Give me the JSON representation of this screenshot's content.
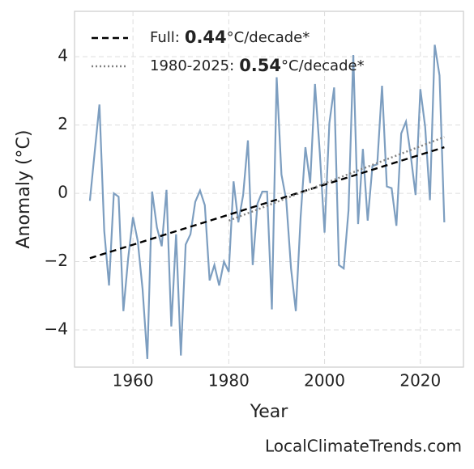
{
  "chart_data": {
    "type": "line",
    "x_label": "Year",
    "y_label": "Anomaly (°C)",
    "source": "LocalClimateTrends.com",
    "xlim": [
      1947.8,
      2029.0
    ],
    "ylim": [
      -5.09,
      5.33
    ],
    "xticks": [
      1960,
      1980,
      2000,
      2020
    ],
    "yticks": [
      {
        "value": -4,
        "label": "−4"
      },
      {
        "value": -2,
        "label": "−2"
      },
      0,
      2,
      4
    ],
    "grid": true,
    "legend": "upper left",
    "series": [
      {
        "color": "#7d9ec0",
        "style": "solid",
        "x": [
          1951,
          1952,
          1953,
          1954,
          1955,
          1956,
          1957,
          1958,
          1959,
          1960,
          1961,
          1962,
          1963,
          1964,
          1965,
          1966,
          1967,
          1968,
          1969,
          1970,
          1971,
          1972,
          1973,
          1974,
          1975,
          1976,
          1977,
          1978,
          1979,
          1980,
          1981,
          1982,
          1983,
          1984,
          1985,
          1986,
          1987,
          1988,
          1989,
          1990,
          1991,
          1992,
          1993,
          1994,
          1995,
          1996,
          1997,
          1998,
          1999,
          2000,
          2001,
          2002,
          2003,
          2004,
          2005,
          2006,
          2007,
          2008,
          2009,
          2010,
          2011,
          2012,
          2013,
          2014,
          2015,
          2016,
          2017,
          2018,
          2019,
          2020,
          2021,
          2022,
          2023,
          2024,
          2025
        ],
        "values": [
          -0.22,
          1.2,
          2.6,
          -1.1,
          -2.7,
          0.0,
          -0.1,
          -3.45,
          -1.9,
          -0.7,
          -1.4,
          -2.8,
          -4.85,
          0.05,
          -1.0,
          -1.55,
          0.1,
          -3.9,
          -1.2,
          -4.75,
          -1.5,
          -1.2,
          -0.25,
          0.08,
          -0.35,
          -2.55,
          -2.1,
          -2.7,
          -2.0,
          -2.3,
          0.35,
          -0.85,
          -0.05,
          1.55,
          -2.1,
          -0.3,
          0.05,
          0.05,
          -3.4,
          3.4,
          0.55,
          -0.2,
          -2.2,
          -3.45,
          -0.7,
          1.35,
          0.3,
          3.2,
          1.2,
          -1.15,
          2.05,
          3.1,
          -2.1,
          -2.2,
          -0.5,
          4.05,
          -0.9,
          1.3,
          -0.8,
          0.8,
          0.85,
          3.15,
          0.2,
          0.15,
          -0.95,
          1.75,
          2.1,
          1.1,
          -0.05,
          3.05,
          1.95,
          -0.2,
          4.35,
          3.45,
          -0.85
        ]
      },
      {
        "name": "Full:",
        "slope": 0.44,
        "unit": "°C/decade*",
        "color": "#000000",
        "style": "dashed",
        "x": [
          1951,
          2025
        ],
        "values": [
          -1.9,
          1.35
        ]
      },
      {
        "name": "1980-2025:",
        "slope": 0.54,
        "unit": "°C/decade*",
        "color": "#808080",
        "style": "dotted",
        "x": [
          1980,
          2025
        ],
        "values": [
          -0.8,
          1.65
        ]
      }
    ]
  }
}
